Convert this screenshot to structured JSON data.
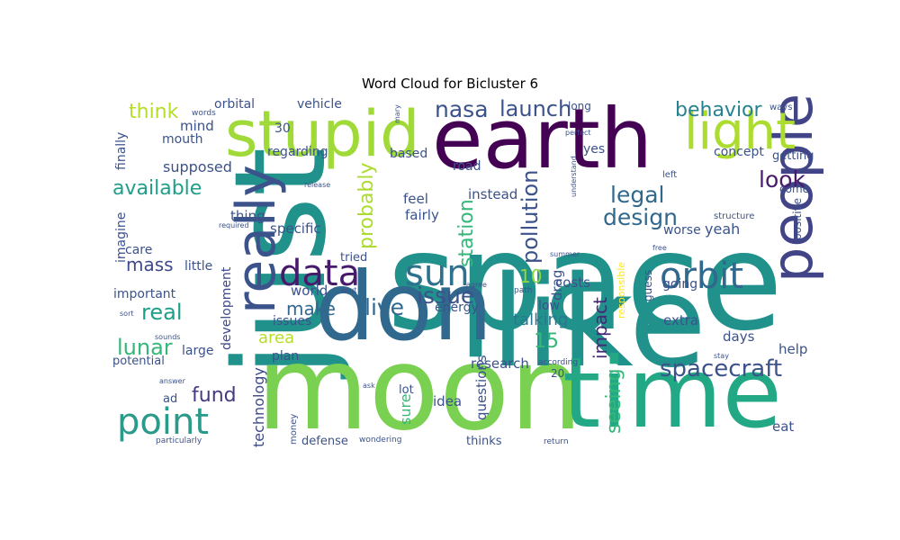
{
  "chart_data": {
    "type": "wordcloud",
    "title": "Word Cloud for Bicluster 6",
    "words": [
      {
        "text": "space",
        "color": "#21918c"
      },
      {
        "text": "just",
        "color": "#21918c",
        "rotate": true
      },
      {
        "text": "moon",
        "color": "#7ad151"
      },
      {
        "text": "like",
        "color": "#21918c"
      },
      {
        "text": "earth",
        "color": "#440154"
      },
      {
        "text": "time",
        "color": "#22a884"
      },
      {
        "text": "don",
        "color": "#31688e"
      },
      {
        "text": "stupid",
        "color": "#a0da39"
      },
      {
        "text": "really",
        "color": "#3b528b",
        "rotate": true
      },
      {
        "text": "people",
        "color": "#414487",
        "rotate": true
      },
      {
        "text": "light",
        "color": "#addc30"
      },
      {
        "text": "point",
        "color": "#2a9a8a"
      },
      {
        "text": "data",
        "color": "#481a6c"
      },
      {
        "text": "sun",
        "color": "#2c728e"
      },
      {
        "text": "orbit",
        "color": "#31688e"
      },
      {
        "text": "spacecraft",
        "color": "#3b528b"
      },
      {
        "text": "behavior",
        "color": "#26828e"
      },
      {
        "text": "launch",
        "color": "#3b528b"
      },
      {
        "text": "nasa",
        "color": "#3b528b"
      },
      {
        "text": "issue",
        "color": "#3b528b"
      },
      {
        "text": "live",
        "color": "#31688e"
      },
      {
        "text": "design",
        "color": "#31688e"
      },
      {
        "text": "legal",
        "color": "#31688e"
      },
      {
        "text": "look",
        "color": "#481a6c"
      },
      {
        "text": "make",
        "color": "#31688e"
      },
      {
        "text": "lunar",
        "color": "#35b779"
      },
      {
        "text": "real",
        "color": "#1f9e89"
      },
      {
        "text": "mass",
        "color": "#3e4989"
      },
      {
        "text": "available",
        "color": "#1f9e89"
      },
      {
        "text": "think",
        "color": "#b5de2b"
      },
      {
        "text": "fund",
        "color": "#443983"
      },
      {
        "text": "area",
        "color": "#b8de29"
      },
      {
        "text": "probably",
        "color": "#addc30",
        "rotate": true
      },
      {
        "text": "station",
        "color": "#35b779",
        "rotate": true
      },
      {
        "text": "pollution",
        "color": "#3b528b",
        "rotate": true
      },
      {
        "text": "impact",
        "color": "#482878",
        "rotate": true
      },
      {
        "text": "seeing",
        "color": "#35b779",
        "rotate": true
      },
      {
        "text": "talking",
        "color": "#2a788e"
      },
      {
        "text": "15",
        "color": "#35b779"
      },
      {
        "text": "10",
        "color": "#8fd744"
      },
      {
        "text": "development",
        "color": "#3e4989",
        "rotate": true
      },
      {
        "text": "technology",
        "color": "#3e4989",
        "rotate": true
      },
      {
        "text": "world",
        "color": "#3b528b"
      },
      {
        "text": "sure",
        "color": "#35b779",
        "rotate": true
      },
      {
        "text": "idea",
        "color": "#3b528b"
      },
      {
        "text": "questions",
        "color": "#3b528b",
        "rotate": true
      },
      {
        "text": "eat",
        "color": "#3b528b"
      },
      {
        "text": "yeah",
        "color": "#3b528b"
      },
      {
        "text": "extra",
        "color": "#3b528b"
      },
      {
        "text": "days",
        "color": "#3b528b"
      },
      {
        "text": "help",
        "color": "#3b528b"
      },
      {
        "text": "research",
        "color": "#3b528b"
      },
      {
        "text": "specific",
        "color": "#3b528b"
      },
      {
        "text": "thing",
        "color": "#3b528b"
      },
      {
        "text": "fairly",
        "color": "#3b528b"
      },
      {
        "text": "feel",
        "color": "#3b528b"
      },
      {
        "text": "instead",
        "color": "#3b528b"
      },
      {
        "text": "costs",
        "color": "#3b528b"
      },
      {
        "text": "low",
        "color": "#3b528b"
      },
      {
        "text": "drag",
        "color": "#3b528b",
        "rotate": true
      },
      {
        "text": "going",
        "color": "#3b528b"
      },
      {
        "text": "worse",
        "color": "#3b528b"
      },
      {
        "text": "guess",
        "color": "#3b528b",
        "rotate": true
      },
      {
        "text": "responsible",
        "color": "#fde725",
        "rotate": true
      },
      {
        "text": "energy",
        "color": "#3b528b"
      },
      {
        "text": "issues",
        "color": "#3b528b"
      },
      {
        "text": "plan",
        "color": "#3b528b"
      },
      {
        "text": "large",
        "color": "#3b528b"
      },
      {
        "text": "little",
        "color": "#3b528b"
      },
      {
        "text": "important",
        "color": "#3b528b"
      },
      {
        "text": "care",
        "color": "#3b528b"
      },
      {
        "text": "imagine",
        "color": "#3b528b",
        "rotate": true
      },
      {
        "text": "finally",
        "color": "#3b528b",
        "rotate": true
      },
      {
        "text": "supposed",
        "color": "#3b528b"
      },
      {
        "text": "mind",
        "color": "#3b528b"
      },
      {
        "text": "mouth",
        "color": "#3b528b"
      },
      {
        "text": "orbital",
        "color": "#3b528b"
      },
      {
        "text": "vehicle",
        "color": "#3b528b"
      },
      {
        "text": "regarding",
        "color": "#3b528b"
      },
      {
        "text": "30",
        "color": "#3b528b"
      },
      {
        "text": "based",
        "color": "#3b528b"
      },
      {
        "text": "road",
        "color": "#3b528b"
      },
      {
        "text": "long",
        "color": "#3b528b"
      },
      {
        "text": "yes",
        "color": "#3b528b"
      },
      {
        "text": "concept",
        "color": "#3b528b"
      },
      {
        "text": "getting",
        "color": "#3b528b"
      },
      {
        "text": "come",
        "color": "#3b528b"
      },
      {
        "text": "positive",
        "color": "#3b528b",
        "rotate": true
      },
      {
        "text": "structure",
        "color": "#3b528b"
      },
      {
        "text": "left",
        "color": "#3b528b"
      },
      {
        "text": "ways",
        "color": "#3b528b"
      },
      {
        "text": "words",
        "color": "#3b528b"
      },
      {
        "text": "mary",
        "color": "#3b528b",
        "rotate": true
      },
      {
        "text": "perfect",
        "color": "#3b528b"
      },
      {
        "text": "understand",
        "color": "#3b528b",
        "rotate": true
      },
      {
        "text": "release",
        "color": "#3b528b"
      },
      {
        "text": "required",
        "color": "#3b528b"
      },
      {
        "text": "tried",
        "color": "#3b528b"
      },
      {
        "text": "shut",
        "color": "#3b528b"
      },
      {
        "text": "agree",
        "color": "#3b528b"
      },
      {
        "text": "path",
        "color": "#3b528b"
      },
      {
        "text": "summer",
        "color": "#3b528b"
      },
      {
        "text": "free",
        "color": "#3b528b"
      },
      {
        "text": "stay",
        "color": "#3b528b"
      },
      {
        "text": "sort",
        "color": "#3b528b"
      },
      {
        "text": "sounds",
        "color": "#3b528b"
      },
      {
        "text": "potential",
        "color": "#3b528b"
      },
      {
        "text": "answer",
        "color": "#3b528b"
      },
      {
        "text": "ad",
        "color": "#3b528b"
      },
      {
        "text": "ask",
        "color": "#3b528b"
      },
      {
        "text": "lot",
        "color": "#3b528b"
      },
      {
        "text": "according",
        "color": "#3b528b"
      },
      {
        "text": "20",
        "color": "#3b528b"
      },
      {
        "text": "money",
        "color": "#3b528b",
        "rotate": true
      },
      {
        "text": "defense",
        "color": "#3b528b"
      },
      {
        "text": "thinks",
        "color": "#3b528b"
      },
      {
        "text": "wondering",
        "color": "#3b528b"
      },
      {
        "text": "particularly",
        "color": "#3b528b"
      },
      {
        "text": "return",
        "color": "#3b528b"
      }
    ]
  }
}
